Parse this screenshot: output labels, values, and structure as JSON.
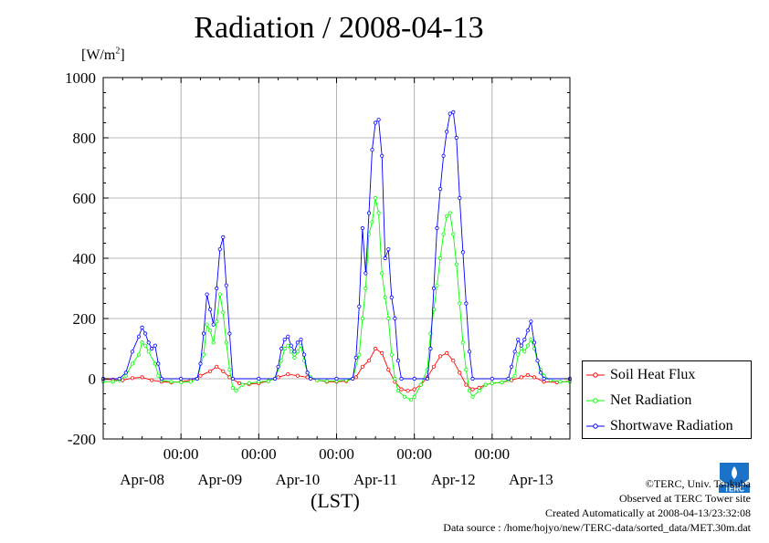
{
  "page": {
    "title": "Radiation / 2008-04-13",
    "unit_prefix": "[W/m",
    "unit_sup": "2",
    "unit_suffix": "]",
    "time_axis_label": "(LST)",
    "credits": {
      "copyright": "©TERC, Univ. Tsukuba",
      "observed": "Observed at TERC Tower site",
      "created": "Created Automatically at 2008-04-13/23:32:08",
      "source": "Data source : /home/hojyo/new/TERC-data/sorted_data/MET.30m.dat"
    },
    "logo_text": "TERC"
  },
  "chart_data": {
    "type": "line",
    "title": "Radiation / 2008-04-13",
    "ylabel": "[W/m2]",
    "xlabel": "(LST)",
    "ylim": [
      -200,
      1000
    ],
    "yticks": [
      -200,
      0,
      200,
      400,
      600,
      800,
      1000
    ],
    "xlim_hours": [
      0,
      144
    ],
    "x_unit": "hours since 2008-04-08 00:00 LST",
    "xticks_time": [
      "00:00",
      "00:00",
      "00:00",
      "00:00",
      "00:00"
    ],
    "xtick_hours": [
      24,
      48,
      72,
      96,
      120
    ],
    "day_labels": [
      "Apr-08",
      "Apr-09",
      "Apr-10",
      "Apr-11",
      "Apr-12",
      "Apr-13"
    ],
    "day_label_hours": [
      12,
      36,
      60,
      84,
      108,
      132
    ],
    "grid": true,
    "legend_position": "right",
    "series": [
      {
        "name": "Soil Heat Flux",
        "color": "#ff0000",
        "points": [
          [
            0,
            -2
          ],
          [
            3,
            -3
          ],
          [
            6,
            -5
          ],
          [
            9,
            2
          ],
          [
            12,
            5
          ],
          [
            15,
            -5
          ],
          [
            18,
            -10
          ],
          [
            21,
            -12
          ],
          [
            24,
            -10
          ],
          [
            27,
            -5
          ],
          [
            30,
            10
          ],
          [
            33,
            25
          ],
          [
            35,
            40
          ],
          [
            37,
            25
          ],
          [
            39,
            5
          ],
          [
            42,
            -15
          ],
          [
            45,
            -18
          ],
          [
            48,
            -15
          ],
          [
            51,
            -8
          ],
          [
            54,
            5
          ],
          [
            57,
            15
          ],
          [
            60,
            10
          ],
          [
            63,
            5
          ],
          [
            66,
            -5
          ],
          [
            69,
            -10
          ],
          [
            72,
            -10
          ],
          [
            75,
            -8
          ],
          [
            78,
            5
          ],
          [
            80,
            40
          ],
          [
            82,
            60
          ],
          [
            84,
            100
          ],
          [
            86,
            85
          ],
          [
            88,
            30
          ],
          [
            90,
            -10
          ],
          [
            92,
            -35
          ],
          [
            94,
            -40
          ],
          [
            96,
            -35
          ],
          [
            98,
            -20
          ],
          [
            100,
            5
          ],
          [
            102,
            40
          ],
          [
            104,
            75
          ],
          [
            106,
            85
          ],
          [
            108,
            60
          ],
          [
            110,
            20
          ],
          [
            112,
            -20
          ],
          [
            114,
            -35
          ],
          [
            116,
            -30
          ],
          [
            118,
            -20
          ],
          [
            120,
            -15
          ],
          [
            123,
            -12
          ],
          [
            126,
            -5
          ],
          [
            129,
            5
          ],
          [
            131,
            12
          ],
          [
            133,
            5
          ],
          [
            136,
            -10
          ],
          [
            140,
            -12
          ],
          [
            144,
            -8
          ]
        ]
      },
      {
        "name": "Net Radiation",
        "color": "#00ff00",
        "points": [
          [
            0,
            -10
          ],
          [
            3,
            -10
          ],
          [
            5,
            -5
          ],
          [
            7,
            10
          ],
          [
            9,
            50
          ],
          [
            11,
            80
          ],
          [
            12,
            120
          ],
          [
            13,
            110
          ],
          [
            14,
            90
          ],
          [
            16,
            50
          ],
          [
            17,
            10
          ],
          [
            18,
            -5
          ],
          [
            21,
            -10
          ],
          [
            24,
            -12
          ],
          [
            27,
            -10
          ],
          [
            29,
            0
          ],
          [
            31,
            80
          ],
          [
            32,
            180
          ],
          [
            33,
            160
          ],
          [
            34,
            120
          ],
          [
            35,
            190
          ],
          [
            36,
            280
          ],
          [
            37,
            220
          ],
          [
            38,
            120
          ],
          [
            39,
            30
          ],
          [
            40,
            -30
          ],
          [
            41,
            -40
          ],
          [
            43,
            -20
          ],
          [
            45,
            -15
          ],
          [
            48,
            -10
          ],
          [
            51,
            -8
          ],
          [
            53,
            0
          ],
          [
            55,
            60
          ],
          [
            56,
            100
          ],
          [
            57,
            110
          ],
          [
            58,
            90
          ],
          [
            59,
            70
          ],
          [
            60,
            90
          ],
          [
            61,
            110
          ],
          [
            62,
            60
          ],
          [
            63,
            20
          ],
          [
            64,
            5
          ],
          [
            66,
            -5
          ],
          [
            69,
            -8
          ],
          [
            72,
            -8
          ],
          [
            75,
            -5
          ],
          [
            77,
            0
          ],
          [
            79,
            80
          ],
          [
            80,
            200
          ],
          [
            81,
            300
          ],
          [
            82,
            480
          ],
          [
            83,
            520
          ],
          [
            84,
            600
          ],
          [
            85,
            550
          ],
          [
            86,
            350
          ],
          [
            87,
            270
          ],
          [
            88,
            200
          ],
          [
            89,
            80
          ],
          [
            90,
            0
          ],
          [
            91,
            -40
          ],
          [
            93,
            -60
          ],
          [
            95,
            -70
          ],
          [
            96,
            -60
          ],
          [
            98,
            -20
          ],
          [
            100,
            30
          ],
          [
            101,
            150
          ],
          [
            102,
            230
          ],
          [
            103,
            310
          ],
          [
            104,
            400
          ],
          [
            105,
            480
          ],
          [
            106,
            540
          ],
          [
            107,
            550
          ],
          [
            108,
            480
          ],
          [
            109,
            380
          ],
          [
            110,
            250
          ],
          [
            111,
            120
          ],
          [
            112,
            30
          ],
          [
            113,
            -40
          ],
          [
            114,
            -60
          ],
          [
            116,
            -40
          ],
          [
            118,
            -20
          ],
          [
            120,
            -15
          ],
          [
            123,
            -12
          ],
          [
            125,
            -5
          ],
          [
            127,
            10
          ],
          [
            128,
            80
          ],
          [
            129,
            100
          ],
          [
            130,
            90
          ],
          [
            131,
            110
          ],
          [
            132,
            130
          ],
          [
            133,
            100
          ],
          [
            134,
            60
          ],
          [
            135,
            30
          ],
          [
            136,
            10
          ],
          [
            138,
            -5
          ],
          [
            141,
            -10
          ],
          [
            144,
            -10
          ]
        ]
      },
      {
        "name": "Shortwave Radiation",
        "color": "#0000ff",
        "points": [
          [
            0,
            0
          ],
          [
            5,
            0
          ],
          [
            7,
            20
          ],
          [
            9,
            90
          ],
          [
            11,
            140
          ],
          [
            12,
            170
          ],
          [
            13,
            150
          ],
          [
            14,
            120
          ],
          [
            15,
            100
          ],
          [
            16,
            110
          ],
          [
            17,
            50
          ],
          [
            18,
            0
          ],
          [
            24,
            0
          ],
          [
            29,
            0
          ],
          [
            30,
            50
          ],
          [
            31,
            150
          ],
          [
            32,
            280
          ],
          [
            33,
            230
          ],
          [
            34,
            180
          ],
          [
            35,
            300
          ],
          [
            36,
            430
          ],
          [
            37,
            470
          ],
          [
            38,
            310
          ],
          [
            39,
            150
          ],
          [
            40,
            0
          ],
          [
            48,
            0
          ],
          [
            53,
            0
          ],
          [
            54,
            40
          ],
          [
            55,
            100
          ],
          [
            56,
            130
          ],
          [
            57,
            140
          ],
          [
            58,
            110
          ],
          [
            59,
            90
          ],
          [
            60,
            120
          ],
          [
            61,
            130
          ],
          [
            62,
            80
          ],
          [
            63,
            20
          ],
          [
            64,
            0
          ],
          [
            72,
            0
          ],
          [
            77,
            0
          ],
          [
            78,
            70
          ],
          [
            79,
            240
          ],
          [
            80,
            500
          ],
          [
            81,
            350
          ],
          [
            82,
            550
          ],
          [
            83,
            760
          ],
          [
            84,
            850
          ],
          [
            85,
            860
          ],
          [
            86,
            740
          ],
          [
            87,
            400
          ],
          [
            88,
            430
          ],
          [
            89,
            270
          ],
          [
            90,
            200
          ],
          [
            91,
            60
          ],
          [
            92,
            0
          ],
          [
            96,
            0
          ],
          [
            100,
            0
          ],
          [
            101,
            100
          ],
          [
            102,
            300
          ],
          [
            103,
            500
          ],
          [
            104,
            630
          ],
          [
            105,
            740
          ],
          [
            106,
            820
          ],
          [
            107,
            880
          ],
          [
            108,
            885
          ],
          [
            109,
            800
          ],
          [
            110,
            600
          ],
          [
            111,
            420
          ],
          [
            112,
            250
          ],
          [
            113,
            90
          ],
          [
            114,
            0
          ],
          [
            120,
            0
          ],
          [
            125,
            0
          ],
          [
            126,
            40
          ],
          [
            127,
            90
          ],
          [
            128,
            130
          ],
          [
            129,
            110
          ],
          [
            130,
            130
          ],
          [
            131,
            160
          ],
          [
            132,
            190
          ],
          [
            133,
            120
          ],
          [
            134,
            60
          ],
          [
            135,
            20
          ],
          [
            136,
            0
          ],
          [
            144,
            0
          ]
        ]
      }
    ]
  }
}
